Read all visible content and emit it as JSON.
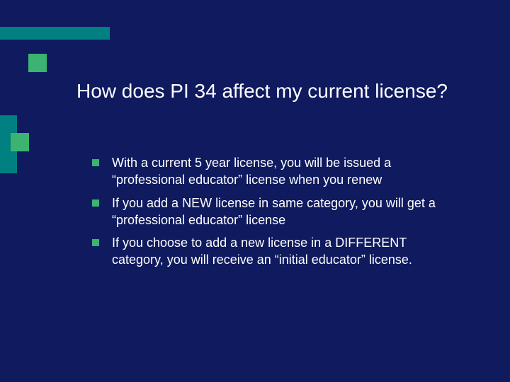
{
  "slide": {
    "background_color": "#0f1a5f",
    "accent_bar_color": "#008080",
    "accent_square_color": "#3cb371",
    "text_color": "#ffffff",
    "title_fontsize": 28,
    "body_fontsize": 18,
    "title": "How does PI 34 affect my current license?",
    "bullets": [
      "With a current 5 year license, you will be issued a “professional educator” license when you renew",
      "If you add a NEW license in same category, you will get a “professional educator” license",
      "If you choose to add a new license in a DIFFERENT category, you will receive an “initial educator” license."
    ]
  }
}
